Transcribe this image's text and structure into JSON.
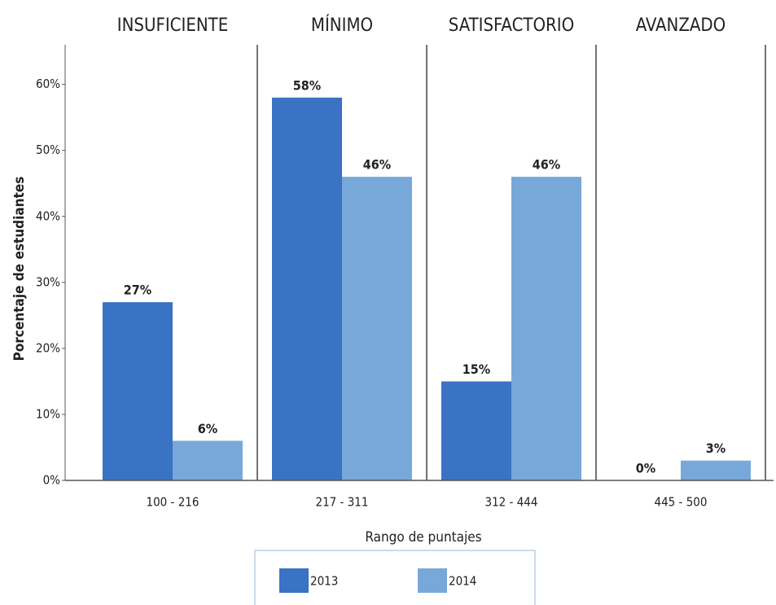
{
  "chart_data": {
    "type": "bar",
    "group_titles": [
      "INSUFICIENTE",
      "MÍNIMO",
      "SATISFACTORIO",
      "AVANZADO"
    ],
    "categories": [
      "100 - 216",
      "217 - 311",
      "312 - 444",
      "445 - 500"
    ],
    "series": [
      {
        "name": "2013",
        "color": "#3a72c4",
        "values": [
          27,
          58,
          15,
          0
        ],
        "value_labels": [
          "27%",
          "58%",
          "15%",
          "0%"
        ]
      },
      {
        "name": "2014",
        "color": "#77a8d9",
        "values": [
          6,
          46,
          46,
          3
        ],
        "value_labels": [
          "6%",
          "46%",
          "46%",
          "3%"
        ]
      }
    ],
    "x_label": "Rango de puntajes",
    "y_label": "Porcentaje de estudiantes",
    "ylim": [
      0,
      66
    ],
    "yticks": [
      {
        "value": 0,
        "label": "0%"
      },
      {
        "value": 10,
        "label": "10%"
      },
      {
        "value": 20,
        "label": "20%"
      },
      {
        "value": 30,
        "label": "30%"
      },
      {
        "value": 40,
        "label": "40%"
      },
      {
        "value": 50,
        "label": "50%"
      },
      {
        "value": 60,
        "label": "60%"
      }
    ],
    "legend": "bottom"
  }
}
